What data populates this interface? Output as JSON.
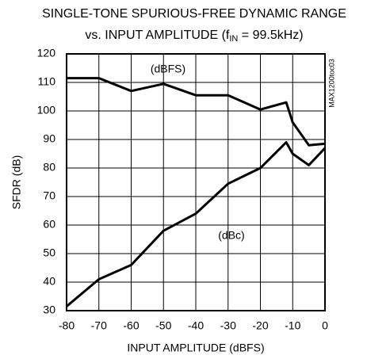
{
  "chart_data": {
    "type": "line",
    "title": [
      "SINGLE-TONE SPURIOUS-FREE DYNAMIC RANGE",
      [
        "vs. INPUT AMPLITUDE (f",
        "IN",
        " = 99.5kHz)"
      ]
    ],
    "x_label": "INPUT AMPLITUDE (dBFS)",
    "y_label": "SFDR (dB)",
    "annotations": [
      "(dBFS)",
      "(dBc)",
      "MAX1200toc03"
    ],
    "x": [
      -80,
      -70,
      -60,
      -50,
      -40,
      -30,
      -20,
      -12,
      -10,
      -5,
      0
    ],
    "series": [
      {
        "name": "(dBFS)",
        "color": "#000000",
        "values": [
          111.5,
          111.5,
          107,
          109.5,
          105.5,
          105.5,
          100.5,
          103,
          96,
          88,
          88.5
        ]
      },
      {
        "name": "(dBc)",
        "color": "#000000",
        "values": [
          31.5,
          41,
          46,
          58,
          64,
          74.5,
          80,
          89,
          85,
          81,
          87
        ]
      }
    ],
    "xlim": [
      -80,
      0
    ],
    "xticks": [
      -80,
      -70,
      -60,
      -50,
      -40,
      -30,
      -20,
      -10,
      0
    ],
    "ylim": [
      30,
      120
    ],
    "yticks": [
      30,
      40,
      50,
      60,
      70,
      80,
      90,
      100,
      110,
      120
    ],
    "grid": true
  }
}
